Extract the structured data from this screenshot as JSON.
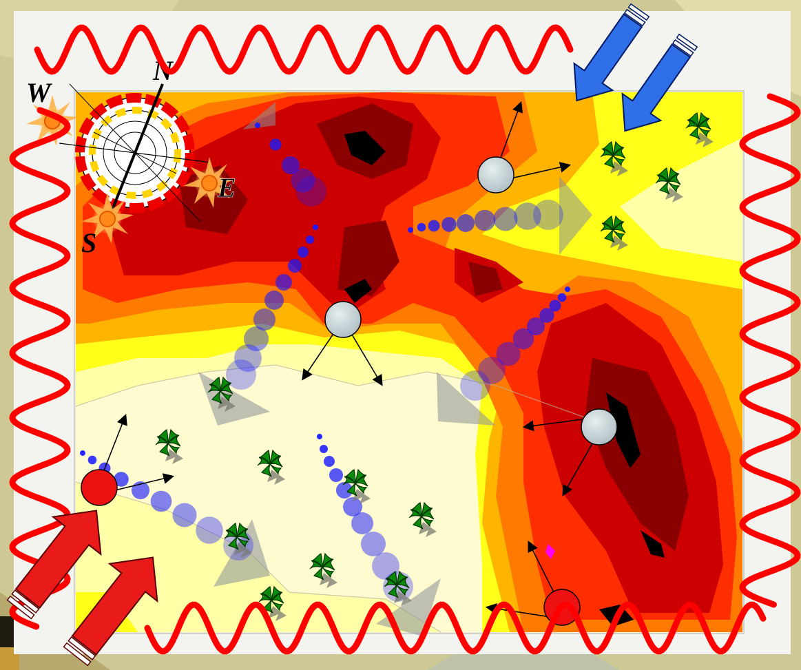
{
  "compass": {
    "north": "N",
    "east": "E",
    "south": "S",
    "west": "W"
  },
  "colors": {
    "wave": "#ff0000",
    "cold_wind_arrow": "#2f6fe8",
    "hot_wind_arrow": "#e81a1a",
    "zone_level_1": "#fffbd0",
    "zone_level_2": "#ffffa8",
    "zone_level_3": "#ffff1a",
    "zone_level_4": "#ffb400",
    "zone_level_5": "#ff7a00",
    "zone_level_6": "#ff2e00",
    "zone_level_7": "#cc0000",
    "zone_level_8": "#8a0000",
    "zone_level_9": "#000000",
    "air_flow_dots": "#1a1aff",
    "gray_node": "#c8d4d8",
    "red_node": "#ee1111",
    "tree": "#0c8a0c"
  },
  "icons": {
    "compass": "sun-path-compass-icon",
    "sun": "sun-burst-icon",
    "tree": "palm-tree-icon",
    "wind_arrow": "wind-arrow-icon"
  }
}
